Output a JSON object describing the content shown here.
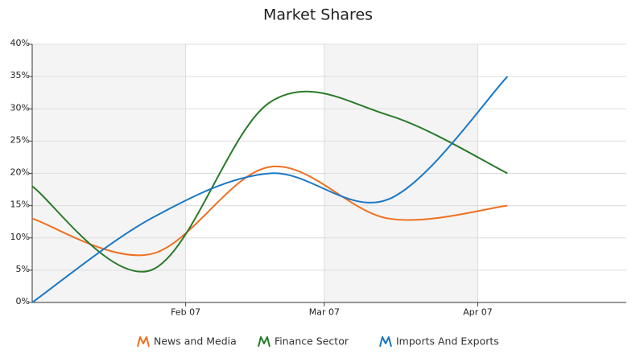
{
  "chart_data": {
    "type": "line",
    "title": "Market Shares",
    "x": [
      "2007-01-01",
      "2007-01-25",
      "2007-02-18",
      "2007-03-14",
      "2007-04-07"
    ],
    "series": [
      {
        "name": "News and Media",
        "color": "#f07020",
        "values": [
          13,
          7.5,
          21,
          13,
          15
        ]
      },
      {
        "name": "Finance Sector",
        "color": "#2a7a2a",
        "values": [
          18,
          5,
          31,
          29,
          20
        ]
      },
      {
        "name": "Imports And Exports",
        "color": "#1a78c8",
        "values": [
          0,
          13,
          20,
          16,
          35
        ]
      }
    ],
    "xlim": [
      "2007-01-01",
      "2007-05-01"
    ],
    "xticks": [
      {
        "value": "2007-02-01",
        "label": "Feb 07"
      },
      {
        "value": "2007-03-01",
        "label": "Mar 07"
      },
      {
        "value": "2007-04-01",
        "label": "Apr 07"
      }
    ],
    "ylim": [
      0,
      40
    ],
    "yticks": [
      {
        "value": 0,
        "label": "0%"
      },
      {
        "value": 5,
        "label": "5%"
      },
      {
        "value": 10,
        "label": "10%"
      },
      {
        "value": 15,
        "label": "15%"
      },
      {
        "value": 20,
        "label": "20%"
      },
      {
        "value": 25,
        "label": "25%"
      },
      {
        "value": 30,
        "label": "30%"
      },
      {
        "value": 35,
        "label": "35%"
      },
      {
        "value": 40,
        "label": "40%"
      }
    ],
    "grid": true
  }
}
